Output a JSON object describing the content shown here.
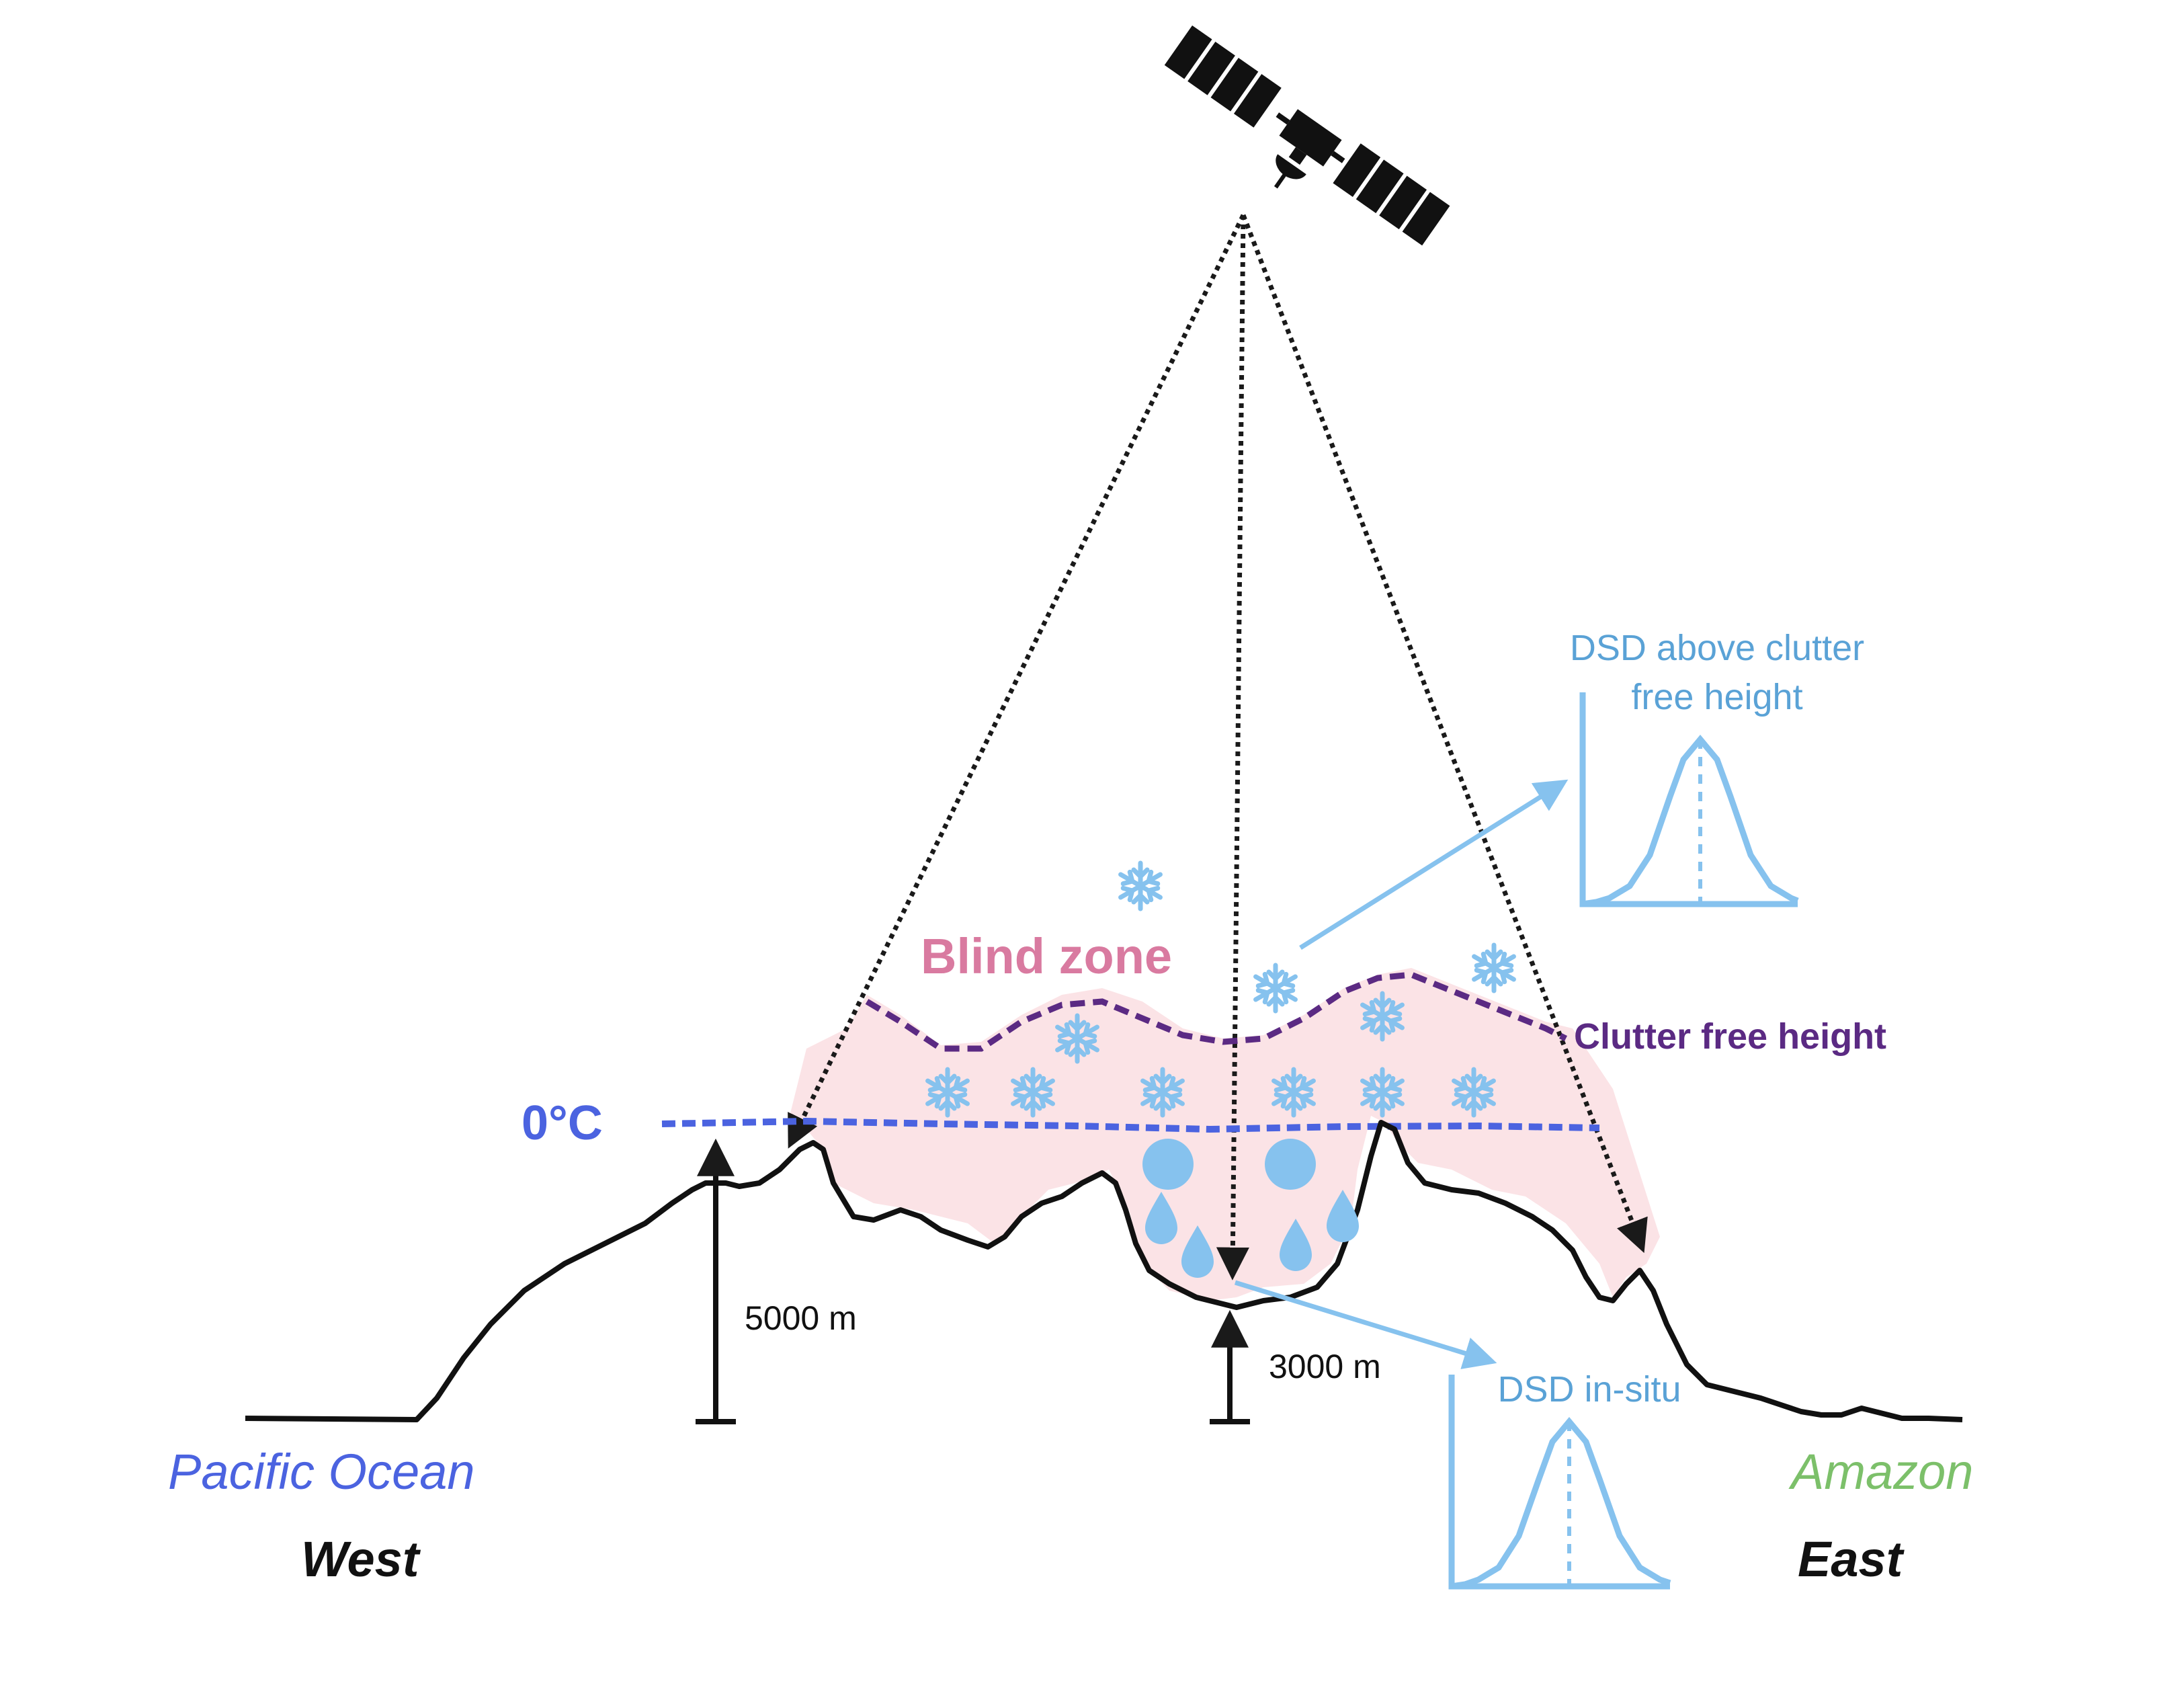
{
  "labels": {
    "blind_zone": "Blind zone",
    "clutter_free_height": "Clutter free height",
    "freezing_level": "0°C",
    "height_5000": "5000 m",
    "height_3000": "3000 m",
    "dsd_above_line1": "DSD above clutter",
    "dsd_above_line2": "free height",
    "dsd_insitu": "DSD in-situ",
    "pacific_ocean": "Pacific Ocean",
    "amazon": "Amazon",
    "west": "West",
    "east": "East"
  },
  "colors": {
    "blind_zone_fill": "#fbe3e6",
    "blind_zone_text": "#d97aa0",
    "clutter_line": "#5b2a83",
    "freezing_line": "#4b63e0",
    "precip": "#86c2ee",
    "dsd_panel": "#86c2ee",
    "dsd_text": "#5aa2d6",
    "pacific_text": "#4b63e0",
    "amazon_text": "#7cc06a",
    "terrain": "#111111"
  },
  "icons": [
    "satellite-icon",
    "snowflake-icon",
    "raindrop-icon"
  ]
}
